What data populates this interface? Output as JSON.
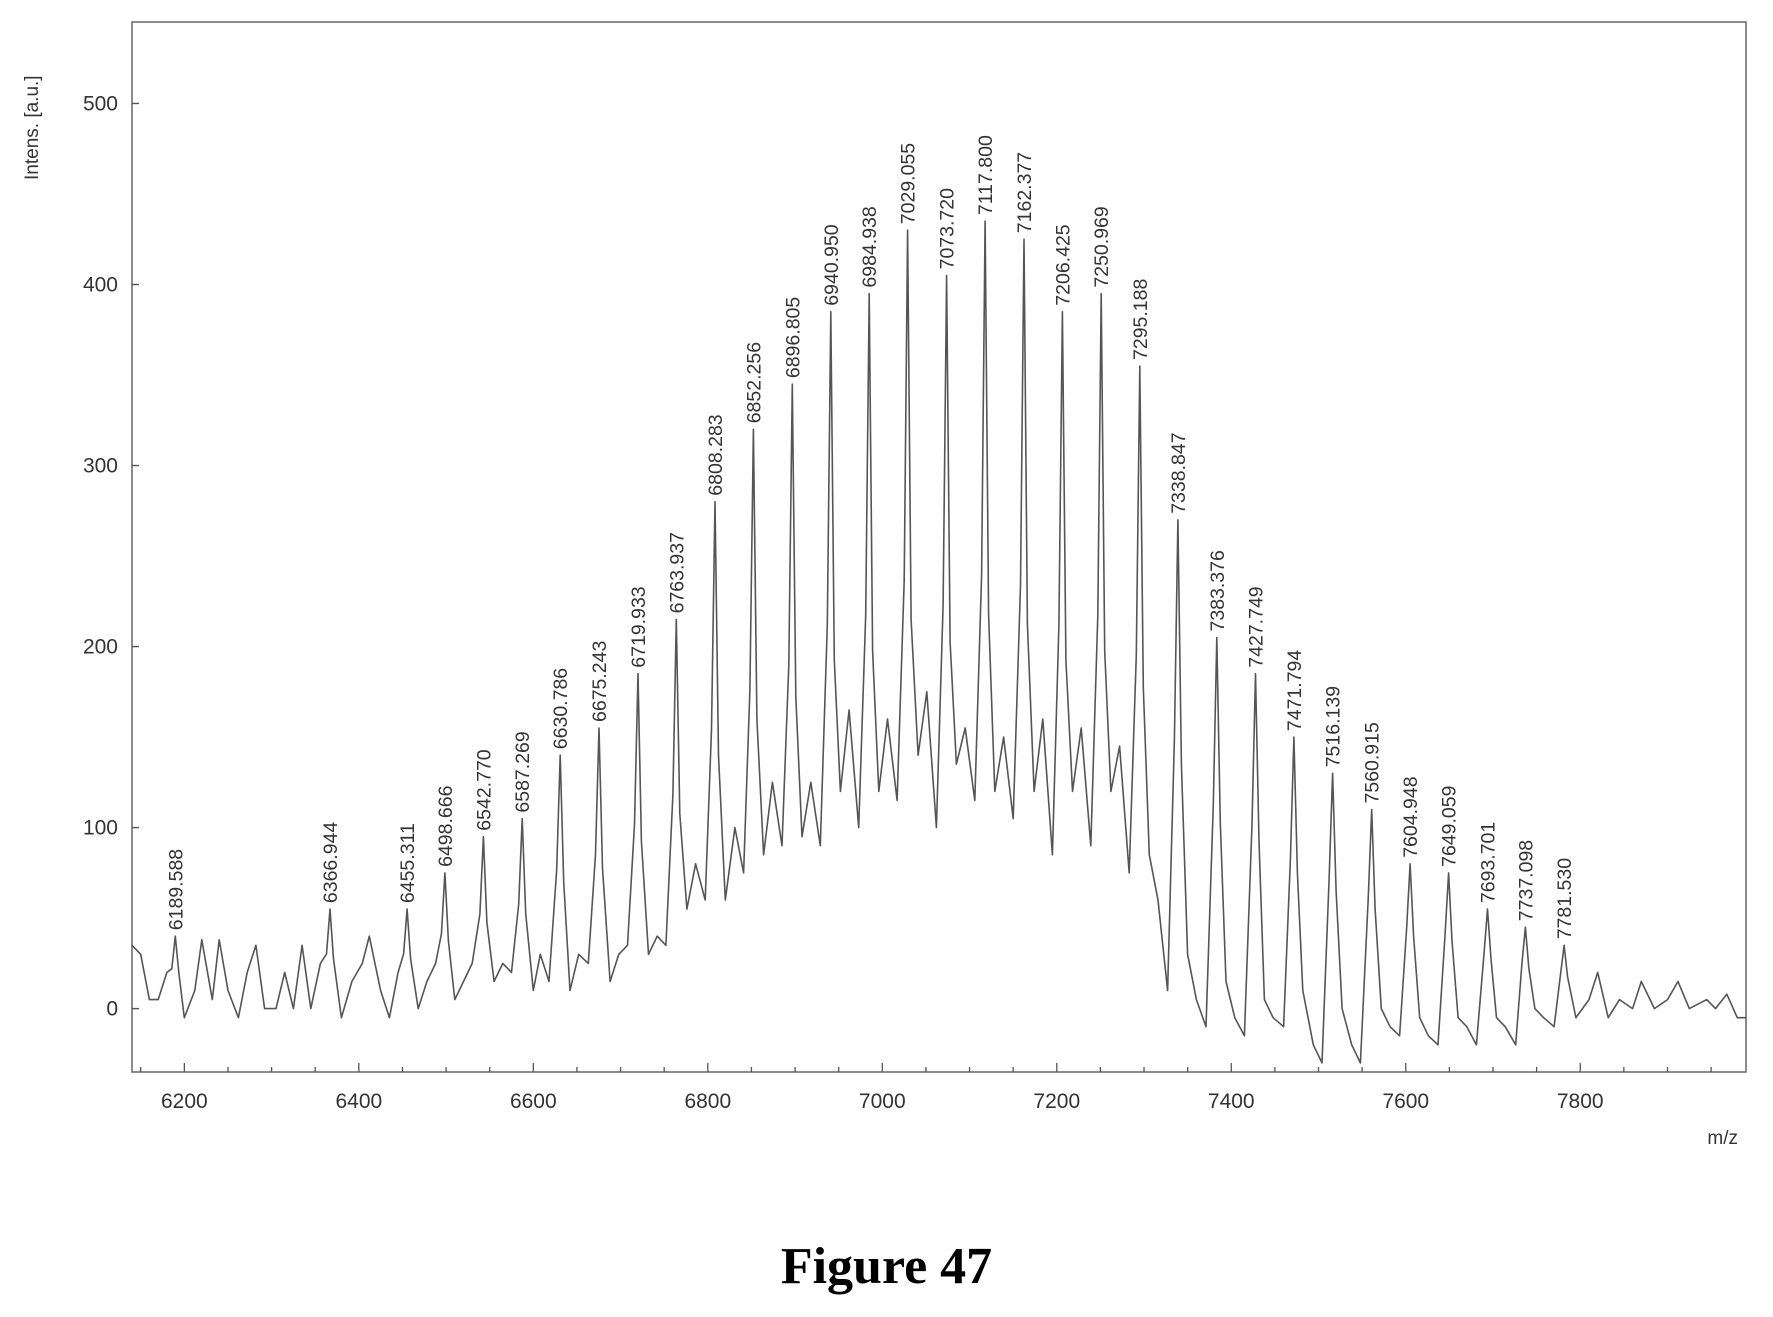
{
  "caption": "Figure 47",
  "chart_data": {
    "type": "line",
    "title": "",
    "xlabel": "m/z",
    "ylabel": "Intens. [a.u.]",
    "xlim": [
      6140,
      7990
    ],
    "ylim": [
      -35,
      545
    ],
    "xticks": [
      6200,
      6400,
      6600,
      6800,
      7000,
      7200,
      7400,
      7600,
      7800
    ],
    "yticks": [
      0,
      100,
      200,
      300,
      400,
      500
    ],
    "grid": false,
    "legend": "none",
    "line_color": "#555555",
    "peaks": [
      {
        "label": "6189.588",
        "x": 6189.588,
        "y": 40
      },
      {
        "label": "6366.944",
        "x": 6366.944,
        "y": 55
      },
      {
        "label": "6455.311",
        "x": 6455.311,
        "y": 55
      },
      {
        "label": "6498.666",
        "x": 6498.666,
        "y": 75
      },
      {
        "label": "6542.770",
        "x": 6542.77,
        "y": 95
      },
      {
        "label": "6587.269",
        "x": 6587.269,
        "y": 105
      },
      {
        "label": "6630.786",
        "x": 6630.786,
        "y": 140
      },
      {
        "label": "6675.243",
        "x": 6675.243,
        "y": 155
      },
      {
        "label": "6719.933",
        "x": 6719.933,
        "y": 185
      },
      {
        "label": "6763.937",
        "x": 6763.937,
        "y": 215
      },
      {
        "label": "6808.283",
        "x": 6808.283,
        "y": 280
      },
      {
        "label": "6852.256",
        "x": 6852.256,
        "y": 320
      },
      {
        "label": "6896.805",
        "x": 6896.805,
        "y": 345
      },
      {
        "label": "6940.950",
        "x": 6940.95,
        "y": 385
      },
      {
        "label": "6984.938",
        "x": 6984.938,
        "y": 395
      },
      {
        "label": "7029.055",
        "x": 7029.055,
        "y": 430
      },
      {
        "label": "7073.720",
        "x": 7073.72,
        "y": 405
      },
      {
        "label": "7117.800",
        "x": 7117.8,
        "y": 435
      },
      {
        "label": "7162.377",
        "x": 7162.377,
        "y": 425
      },
      {
        "label": "7206.425",
        "x": 7206.425,
        "y": 385
      },
      {
        "label": "7250.969",
        "x": 7250.969,
        "y": 395
      },
      {
        "label": "7295.188",
        "x": 7295.188,
        "y": 355
      },
      {
        "label": "7338.847",
        "x": 7338.847,
        "y": 270
      },
      {
        "label": "7383.376",
        "x": 7383.376,
        "y": 205
      },
      {
        "label": "7427.749",
        "x": 7427.749,
        "y": 185
      },
      {
        "label": "7471.794",
        "x": 7471.794,
        "y": 150
      },
      {
        "label": "7516.139",
        "x": 7516.139,
        "y": 130
      },
      {
        "label": "7560.915",
        "x": 7560.915,
        "y": 110
      },
      {
        "label": "7604.948",
        "x": 7604.948,
        "y": 80
      },
      {
        "label": "7649.059",
        "x": 7649.059,
        "y": 75
      },
      {
        "label": "7693.701",
        "x": 7693.701,
        "y": 55
      },
      {
        "label": "7737.098",
        "x": 7737.098,
        "y": 45
      },
      {
        "label": "7781.530",
        "x": 7781.53,
        "y": 35
      }
    ],
    "baseline": [
      {
        "x": 6140,
        "y": 35
      },
      {
        "x": 6150,
        "y": 30
      },
      {
        "x": 6160,
        "y": 5
      },
      {
        "x": 6170,
        "y": 5
      },
      {
        "x": 6180,
        "y": 20
      },
      {
        "x": 6200,
        "y": -5
      },
      {
        "x": 6212,
        "y": 10
      },
      {
        "x": 6220,
        "y": 38
      },
      {
        "x": 6232,
        "y": 5
      },
      {
        "x": 6240,
        "y": 38
      },
      {
        "x": 6250,
        "y": 10
      },
      {
        "x": 6262,
        "y": -5
      },
      {
        "x": 6272,
        "y": 20
      },
      {
        "x": 6282,
        "y": 35
      },
      {
        "x": 6292,
        "y": 0
      },
      {
        "x": 6305,
        "y": 0
      },
      {
        "x": 6315,
        "y": 20
      },
      {
        "x": 6325,
        "y": 0
      },
      {
        "x": 6335,
        "y": 35
      },
      {
        "x": 6345,
        "y": 0
      },
      {
        "x": 6356,
        "y": 25
      },
      {
        "x": 6380,
        "y": -5
      },
      {
        "x": 6392,
        "y": 15
      },
      {
        "x": 6404,
        "y": 25
      },
      {
        "x": 6412,
        "y": 40
      },
      {
        "x": 6425,
        "y": 10
      },
      {
        "x": 6435,
        "y": -5
      },
      {
        "x": 6445,
        "y": 20
      },
      {
        "x": 6468,
        "y": 0
      },
      {
        "x": 6478,
        "y": 15
      },
      {
        "x": 6488,
        "y": 25
      },
      {
        "x": 6510,
        "y": 5
      },
      {
        "x": 6520,
        "y": 15
      },
      {
        "x": 6530,
        "y": 25
      },
      {
        "x": 6555,
        "y": 15
      },
      {
        "x": 6565,
        "y": 25
      },
      {
        "x": 6575,
        "y": 20
      },
      {
        "x": 6600,
        "y": 10
      },
      {
        "x": 6608,
        "y": 30
      },
      {
        "x": 6618,
        "y": 15
      },
      {
        "x": 6642,
        "y": 10
      },
      {
        "x": 6652,
        "y": 30
      },
      {
        "x": 6663,
        "y": 25
      },
      {
        "x": 6688,
        "y": 15
      },
      {
        "x": 6698,
        "y": 30
      },
      {
        "x": 6708,
        "y": 35
      },
      {
        "x": 6732,
        "y": 30
      },
      {
        "x": 6742,
        "y": 40
      },
      {
        "x": 6752,
        "y": 35
      },
      {
        "x": 6776,
        "y": 55
      },
      {
        "x": 6786,
        "y": 80
      },
      {
        "x": 6797,
        "y": 60
      },
      {
        "x": 6820,
        "y": 60
      },
      {
        "x": 6831,
        "y": 100
      },
      {
        "x": 6841,
        "y": 75
      },
      {
        "x": 6864,
        "y": 85
      },
      {
        "x": 6874,
        "y": 125
      },
      {
        "x": 6885,
        "y": 90
      },
      {
        "x": 6908,
        "y": 95
      },
      {
        "x": 6918,
        "y": 125
      },
      {
        "x": 6929,
        "y": 90
      },
      {
        "x": 6952,
        "y": 120
      },
      {
        "x": 6962,
        "y": 165
      },
      {
        "x": 6973,
        "y": 100
      },
      {
        "x": 6996,
        "y": 120
      },
      {
        "x": 7006,
        "y": 160
      },
      {
        "x": 7017,
        "y": 115
      },
      {
        "x": 7041,
        "y": 140
      },
      {
        "x": 7051,
        "y": 175
      },
      {
        "x": 7062,
        "y": 100
      },
      {
        "x": 7085,
        "y": 135
      },
      {
        "x": 7095,
        "y": 155
      },
      {
        "x": 7106,
        "y": 115
      },
      {
        "x": 7129,
        "y": 120
      },
      {
        "x": 7139,
        "y": 150
      },
      {
        "x": 7150,
        "y": 105
      },
      {
        "x": 7174,
        "y": 120
      },
      {
        "x": 7184,
        "y": 160
      },
      {
        "x": 7195,
        "y": 85
      },
      {
        "x": 7218,
        "y": 120
      },
      {
        "x": 7228,
        "y": 155
      },
      {
        "x": 7239,
        "y": 90
      },
      {
        "x": 7262,
        "y": 120
      },
      {
        "x": 7272,
        "y": 145
      },
      {
        "x": 7283,
        "y": 75
      },
      {
        "x": 7306,
        "y": 85
      },
      {
        "x": 7316,
        "y": 60
      },
      {
        "x": 7327,
        "y": 10
      },
      {
        "x": 7350,
        "y": 30
      },
      {
        "x": 7360,
        "y": 5
      },
      {
        "x": 7371,
        "y": -10
      },
      {
        "x": 7394,
        "y": 15
      },
      {
        "x": 7404,
        "y": -5
      },
      {
        "x": 7415,
        "y": -15
      },
      {
        "x": 7438,
        "y": 5
      },
      {
        "x": 7448,
        "y": -5
      },
      {
        "x": 7460,
        "y": -10
      },
      {
        "x": 7482,
        "y": 10
      },
      {
        "x": 7494,
        "y": -20
      },
      {
        "x": 7504,
        "y": -30
      },
      {
        "x": 7527,
        "y": 0
      },
      {
        "x": 7538,
        "y": -20
      },
      {
        "x": 7548,
        "y": -30
      },
      {
        "x": 7572,
        "y": 0
      },
      {
        "x": 7582,
        "y": -10
      },
      {
        "x": 7593,
        "y": -15
      },
      {
        "x": 7616,
        "y": -5
      },
      {
        "x": 7626,
        "y": -15
      },
      {
        "x": 7637,
        "y": -20
      },
      {
        "x": 7660,
        "y": -5
      },
      {
        "x": 7670,
        "y": -10
      },
      {
        "x": 7681,
        "y": -20
      },
      {
        "x": 7704,
        "y": -5
      },
      {
        "x": 7714,
        "y": -10
      },
      {
        "x": 7726,
        "y": -20
      },
      {
        "x": 7748,
        "y": 0
      },
      {
        "x": 7758,
        "y": -5
      },
      {
        "x": 7770,
        "y": -10
      },
      {
        "x": 7795,
        "y": -5
      },
      {
        "x": 7810,
        "y": 5
      },
      {
        "x": 7820,
        "y": 20
      },
      {
        "x": 7832,
        "y": -5
      },
      {
        "x": 7845,
        "y": 5
      },
      {
        "x": 7860,
        "y": 0
      },
      {
        "x": 7870,
        "y": 15
      },
      {
        "x": 7885,
        "y": 0
      },
      {
        "x": 7900,
        "y": 5
      },
      {
        "x": 7912,
        "y": 15
      },
      {
        "x": 7925,
        "y": 0
      },
      {
        "x": 7945,
        "y": 5
      },
      {
        "x": 7955,
        "y": 0
      },
      {
        "x": 7968,
        "y": 8
      },
      {
        "x": 7980,
        "y": -5
      },
      {
        "x": 7990,
        "y": -5
      }
    ]
  }
}
